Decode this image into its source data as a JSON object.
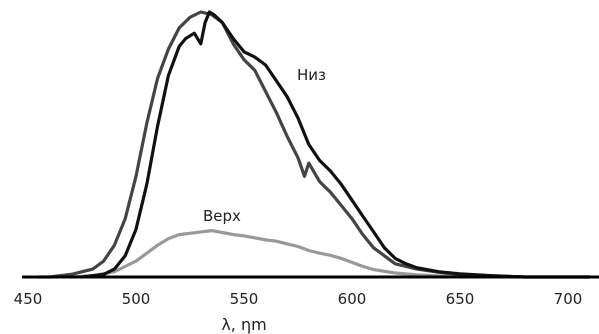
{
  "chart_data": {
    "type": "line",
    "title": "",
    "xlabel": "λ, ηm",
    "ylabel": "",
    "xlim": [
      450,
      710
    ],
    "ylim": [
      0,
      1
    ],
    "grid": false,
    "x_ticks": [
      "450",
      "500",
      "550",
      "600",
      "650",
      "700"
    ],
    "series": [
      {
        "name": "Низ",
        "color": "#111111",
        "x": [
          475,
          485,
          490,
          495,
          500,
          505,
          510,
          515,
          520,
          523,
          527,
          530,
          532,
          534,
          536,
          540,
          545,
          550,
          555,
          560,
          565,
          570,
          575,
          580,
          585,
          590,
          595,
          600,
          605,
          610,
          615,
          620,
          625,
          630,
          640,
          650,
          665,
          680,
          710
        ],
        "y": [
          0.0,
          0.01,
          0.03,
          0.08,
          0.18,
          0.35,
          0.57,
          0.76,
          0.87,
          0.9,
          0.92,
          0.88,
          0.96,
          1.0,
          0.99,
          0.96,
          0.9,
          0.85,
          0.83,
          0.8,
          0.74,
          0.68,
          0.6,
          0.5,
          0.44,
          0.4,
          0.35,
          0.29,
          0.23,
          0.17,
          0.11,
          0.07,
          0.05,
          0.035,
          0.02,
          0.012,
          0.005,
          0.0,
          0.0
        ]
      },
      {
        "name": "",
        "color": "#444444",
        "x": [
          455,
          460,
          470,
          480,
          485,
          490,
          495,
          500,
          505,
          510,
          515,
          520,
          525,
          530,
          535,
          540,
          545,
          550,
          555,
          560,
          565,
          570,
          575,
          578,
          580,
          585,
          590,
          595,
          600,
          605,
          610,
          615,
          620,
          630,
          640,
          650,
          665,
          680,
          710
        ],
        "y": [
          0.0,
          0.0,
          0.01,
          0.03,
          0.06,
          0.12,
          0.22,
          0.38,
          0.58,
          0.75,
          0.86,
          0.94,
          0.98,
          1.0,
          0.99,
          0.96,
          0.88,
          0.82,
          0.78,
          0.7,
          0.62,
          0.53,
          0.45,
          0.38,
          0.43,
          0.36,
          0.32,
          0.27,
          0.22,
          0.16,
          0.11,
          0.08,
          0.05,
          0.03,
          0.018,
          0.01,
          0.004,
          0.0,
          0.0
        ]
      },
      {
        "name": "Верх",
        "color": "#999999",
        "x": [
          470,
          480,
          490,
          500,
          505,
          510,
          515,
          520,
          525,
          530,
          535,
          540,
          545,
          550,
          555,
          560,
          565,
          570,
          575,
          580,
          585,
          590,
          595,
          600,
          605,
          610,
          620,
          630,
          640,
          660,
          680
        ],
        "y": [
          0.0,
          0.005,
          0.02,
          0.06,
          0.09,
          0.12,
          0.145,
          0.16,
          0.165,
          0.17,
          0.175,
          0.168,
          0.16,
          0.155,
          0.148,
          0.14,
          0.135,
          0.125,
          0.115,
          0.1,
          0.09,
          0.082,
          0.07,
          0.055,
          0.04,
          0.028,
          0.015,
          0.008,
          0.004,
          0.001,
          0.0
        ]
      }
    ]
  }
}
